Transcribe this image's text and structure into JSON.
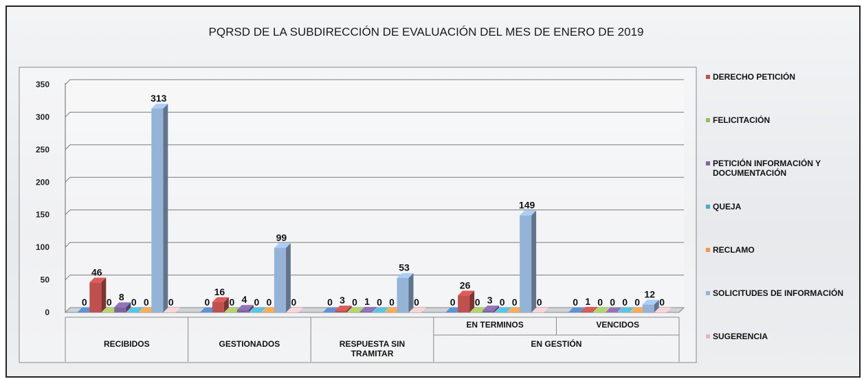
{
  "chart_data": {
    "type": "bar3d",
    "title": "PQRSD DE LA SUBDIRECCIÓN DE EVALUACIÓN DEL MES DE ENERO DE 2019",
    "categories": [
      "RECIBIDOS",
      "GESTIONADOS",
      "RESPUESTA SIN TRAMITAR",
      "EN TERMINOS",
      "VENCIDOS"
    ],
    "category_groups": [
      {
        "label": "EN GESTIÓN",
        "members": [
          "EN TERMINOS",
          "VENCIDOS"
        ]
      }
    ],
    "series": [
      {
        "name": null,
        "color": "#4f81bd",
        "values": [
          0,
          0,
          0,
          0,
          0
        ]
      },
      {
        "name": "DERECHO PETICIÓN",
        "color": "#c0504d",
        "values": [
          46,
          16,
          3,
          26,
          1
        ]
      },
      {
        "name": "FELICITACIÓN",
        "color": "#9bbb59",
        "values": [
          0,
          0,
          0,
          0,
          0
        ]
      },
      {
        "name": "PETICIÓN INFORMACIÓN Y DOCUMENTACIÓN",
        "color": "#8064a2",
        "values": [
          8,
          4,
          1,
          3,
          0
        ]
      },
      {
        "name": "QUEJA",
        "color": "#4bacc6",
        "values": [
          0,
          0,
          0,
          0,
          0
        ]
      },
      {
        "name": "RECLAMO",
        "color": "#f79646",
        "values": [
          0,
          0,
          0,
          0,
          0
        ]
      },
      {
        "name": "SOLICITUDES DE INFORMACIÓN",
        "color": "#95b3d7",
        "values": [
          313,
          99,
          53,
          149,
          12
        ]
      },
      {
        "name": "SUGERENCIA",
        "color": "#e6b9b8",
        "values": [
          0,
          0,
          0,
          0,
          0
        ]
      }
    ],
    "ylim": [
      0,
      350
    ],
    "yticks": [
      0,
      50,
      100,
      150,
      200,
      250,
      300,
      350
    ],
    "grid": true,
    "legend": "right"
  }
}
